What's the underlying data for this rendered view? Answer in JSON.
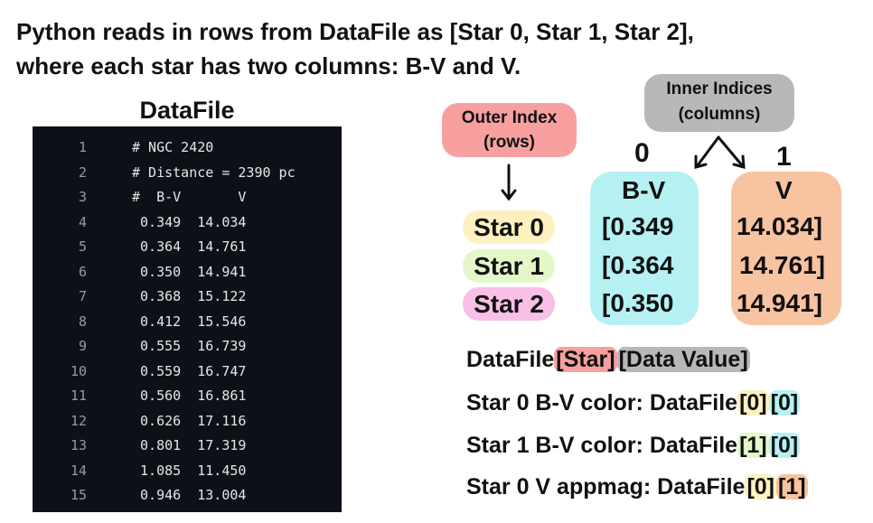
{
  "heading": {
    "line1": "Python reads in rows from DataFile as [Star 0, Star 1, Star 2],",
    "line2": "where each star has two columns: B-V and V."
  },
  "file_panel": {
    "title": "DataFile",
    "rows": [
      {
        "n": "1",
        "text": "# NGC 2420"
      },
      {
        "n": "2",
        "text": "# Distance = 2390 pc"
      },
      {
        "n": "3",
        "text": "#  B-V       V"
      },
      {
        "n": "4",
        "text": " 0.349  14.034"
      },
      {
        "n": "5",
        "text": " 0.364  14.761"
      },
      {
        "n": "6",
        "text": " 0.350  14.941"
      },
      {
        "n": "7",
        "text": " 0.368  15.122"
      },
      {
        "n": "8",
        "text": " 0.412  15.546"
      },
      {
        "n": "9",
        "text": " 0.555  16.739"
      },
      {
        "n": "10",
        "text": " 0.559  16.747"
      },
      {
        "n": "11",
        "text": " 0.560  16.861"
      },
      {
        "n": "12",
        "text": " 0.626  17.116"
      },
      {
        "n": "13",
        "text": " 0.801  17.319"
      },
      {
        "n": "14",
        "text": " 1.085  11.450"
      },
      {
        "n": "15",
        "text": " 0.946  13.004"
      }
    ]
  },
  "diagram": {
    "outer_index": {
      "line1": "Outer Index",
      "line2": "(rows)"
    },
    "inner_indices": {
      "line1": "Inner Indices",
      "line2": "(columns)"
    },
    "col0_index": "0",
    "col1_index": "1",
    "col0_header": "B-V",
    "col1_header": "V",
    "stars": [
      {
        "label": "Star 0",
        "bv": "[0.349",
        "v": "14.034]"
      },
      {
        "label": "Star 1",
        "bv": "[0.364",
        "v": "14.761]"
      },
      {
        "label": "Star 2",
        "bv": "[0.350",
        "v": "14.941]"
      }
    ]
  },
  "syntax": {
    "generic": {
      "prefix": "DataFile",
      "star": "[Star]",
      "data": "[Data Value]"
    },
    "ex1": {
      "prefix": "Star 0 B-V color: DataFile",
      "i": "[0]",
      "j": "[0]"
    },
    "ex2": {
      "prefix": "Star 1 B-V color: DataFile",
      "i": "[1]",
      "j": "[0]"
    },
    "ex3": {
      "prefix": "Star 0 V appmag: DataFile",
      "i": "[0]",
      "j": "[1]"
    }
  },
  "colors": {
    "outer": "#f8a0a0",
    "inner": "#b8b8b8",
    "bv": "#b5f1f3",
    "v": "#f8c3a1",
    "star0": "#fdf1bf",
    "star1": "#e4f7c9",
    "star2": "#f9c0e7",
    "code_bg": "#0d1117"
  }
}
